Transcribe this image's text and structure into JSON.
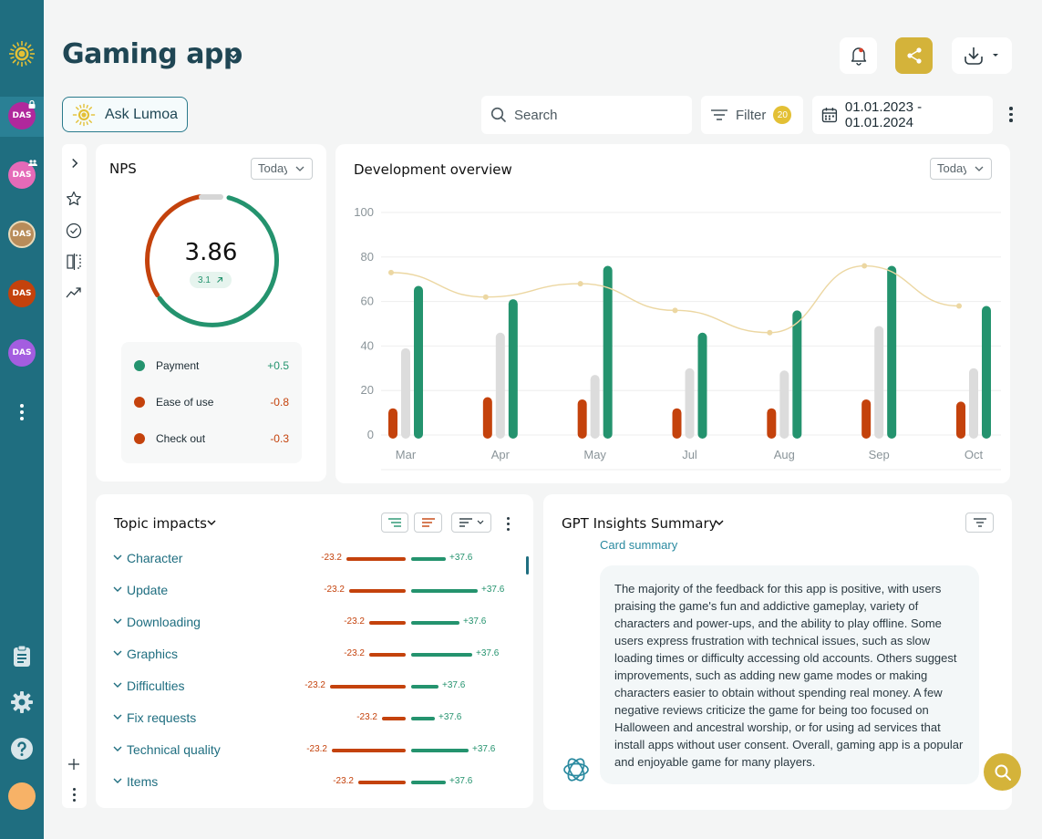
{
  "app": {
    "title": "Gaming app"
  },
  "rail": {
    "workspaces": [
      {
        "label": "DAS",
        "color": "#b0289c"
      },
      {
        "label": "DAS",
        "color": "#e56ab8"
      },
      {
        "label": "DAS",
        "color": "#b88c5a"
      },
      {
        "label": "DAS",
        "color": "#c4420c"
      },
      {
        "label": "DAS",
        "color": "#a45de0"
      }
    ]
  },
  "toolbar": {
    "ask_label": "Ask Lumoa",
    "search_placeholder": "Search",
    "filter_label": "Filter",
    "filter_count": "20",
    "date_range": "01.01.2023 - 01.01.2024"
  },
  "nps": {
    "title": "NPS",
    "period": "Today",
    "score": "3.86",
    "delta": "3.1",
    "legend": [
      {
        "label": "Payment",
        "value": "+0.5",
        "color": "#24936e"
      },
      {
        "label": "Ease of use",
        "value": "-0.8",
        "color": "#c4420c"
      },
      {
        "label": "Check out",
        "value": "-0.3",
        "color": "#c4420c"
      }
    ]
  },
  "dev": {
    "title": "Development overview",
    "period": "Today"
  },
  "chart_data": {
    "type": "bar",
    "categories": [
      "Mar",
      "Apr",
      "May",
      "Jul",
      "Aug",
      "Sep",
      "Oct"
    ],
    "series": [
      {
        "values": [
          12,
          17,
          16,
          12,
          12,
          16,
          15
        ],
        "color": "#c4420c"
      },
      {
        "values": [
          39,
          46,
          27,
          30,
          29,
          49,
          30
        ],
        "color": "#dcdcdc"
      },
      {
        "values": [
          67,
          61,
          76,
          46,
          56,
          76,
          58
        ],
        "color": "#24936e"
      }
    ],
    "line": {
      "values": [
        73,
        62,
        68,
        56,
        46,
        76,
        58
      ],
      "color": "#ecd7a2"
    },
    "yticks": [
      "100",
      "80",
      "60",
      "40",
      "20",
      "0"
    ],
    "ylim": [
      0,
      100
    ],
    "grid": true
  },
  "topics": {
    "title": "Topic impacts",
    "rows": [
      {
        "label": "Character",
        "neg": "-23.2",
        "pos": "+37.6",
        "negw": 65,
        "posw": 38
      },
      {
        "label": "Update",
        "neg": "-23.2",
        "pos": "+37.6",
        "negw": 62,
        "posw": 73
      },
      {
        "label": "Downloading",
        "neg": "-23.2",
        "pos": "+37.6",
        "negw": 40,
        "posw": 53
      },
      {
        "label": "Graphics",
        "neg": "-23.2",
        "pos": "+37.6",
        "negw": 40,
        "posw": 67
      },
      {
        "label": "Difficulties",
        "neg": "-23.2",
        "pos": "+37.6",
        "negw": 83,
        "posw": 30
      },
      {
        "label": "Fix requests",
        "neg": "-23.2",
        "pos": "+37.6",
        "negw": 26,
        "posw": 26
      },
      {
        "label": "Technical quality",
        "neg": "-23.2",
        "pos": "+37.6",
        "negw": 81,
        "posw": 63
      },
      {
        "label": "Items",
        "neg": "-23.2",
        "pos": "+37.6",
        "negw": 52,
        "posw": 38
      }
    ]
  },
  "gpt": {
    "title": "GPT Insights Summary",
    "subtitle": "Card summary",
    "body": "The majority of the feedback for this app is positive, with users praising the game's fun and addictive gameplay, variety of characters and power-ups, and the ability to play offline. Some users express frustration with technical issues, such as slow loading times or difficulty accessing old accounts. Others suggest improvements, such as adding new game modes or making characters easier to obtain without spending real money. A few negative reviews criticize the game for being too focused on Halloween and ancestral worship, or for using ad services that install apps without user consent. Overall, gaming app is a popular and enjoyable game for many players."
  }
}
